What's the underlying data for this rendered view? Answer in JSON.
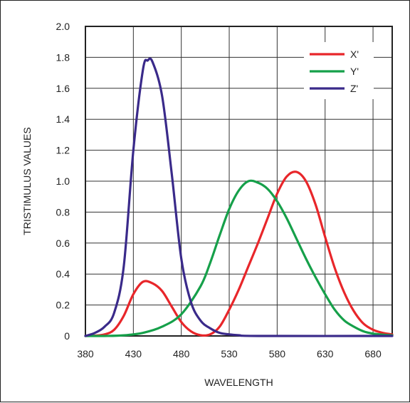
{
  "chart_data": {
    "type": "line",
    "title": "",
    "xlabel": "WAVELENGTH",
    "ylabel": "TRISTIMULUS VALUES",
    "xlim": [
      380,
      700
    ],
    "ylim": [
      0,
      2.0
    ],
    "xticks": [
      380,
      430,
      480,
      530,
      580,
      630,
      680
    ],
    "xtick_labels": [
      "380",
      "430",
      "480",
      "530",
      "580",
      "630",
      "680"
    ],
    "yticks": [
      0,
      0.2,
      0.4,
      0.6,
      0.8,
      1.0,
      1.2,
      1.4,
      1.6,
      1.8,
      2.0
    ],
    "ytick_labels": [
      "0",
      "0.2",
      "0.4",
      "0.6",
      "0.8",
      "1.0",
      "1.2",
      "1.4",
      "1.6",
      "1.8",
      "2.0"
    ],
    "grid": true,
    "legend_position": "top-right",
    "series": [
      {
        "name": "X'",
        "color": "#e8262a",
        "points": [
          [
            380,
            0
          ],
          [
            390,
            0.002
          ],
          [
            400,
            0.01
          ],
          [
            410,
            0.04
          ],
          [
            420,
            0.13
          ],
          [
            430,
            0.27
          ],
          [
            440,
            0.35
          ],
          [
            450,
            0.34
          ],
          [
            460,
            0.29
          ],
          [
            470,
            0.19
          ],
          [
            480,
            0.09
          ],
          [
            490,
            0.03
          ],
          [
            500,
            0.005
          ],
          [
            510,
            0.01
          ],
          [
            520,
            0.06
          ],
          [
            530,
            0.17
          ],
          [
            540,
            0.3
          ],
          [
            550,
            0.45
          ],
          [
            560,
            0.6
          ],
          [
            570,
            0.76
          ],
          [
            580,
            0.92
          ],
          [
            590,
            1.03
          ],
          [
            600,
            1.06
          ],
          [
            610,
            1.0
          ],
          [
            620,
            0.85
          ],
          [
            630,
            0.64
          ],
          [
            640,
            0.44
          ],
          [
            650,
            0.28
          ],
          [
            660,
            0.16
          ],
          [
            670,
            0.08
          ],
          [
            680,
            0.04
          ],
          [
            690,
            0.02
          ],
          [
            700,
            0.01
          ]
        ]
      },
      {
        "name": "Y'",
        "color": "#16a04a",
        "points": [
          [
            380,
            0
          ],
          [
            400,
            0
          ],
          [
            420,
            0.004
          ],
          [
            440,
            0.02
          ],
          [
            460,
            0.06
          ],
          [
            480,
            0.14
          ],
          [
            500,
            0.32
          ],
          [
            510,
            0.47
          ],
          [
            520,
            0.65
          ],
          [
            530,
            0.82
          ],
          [
            540,
            0.94
          ],
          [
            550,
            1.0
          ],
          [
            560,
            0.99
          ],
          [
            570,
            0.95
          ],
          [
            580,
            0.87
          ],
          [
            590,
            0.76
          ],
          [
            600,
            0.63
          ],
          [
            610,
            0.5
          ],
          [
            620,
            0.38
          ],
          [
            630,
            0.27
          ],
          [
            640,
            0.17
          ],
          [
            650,
            0.1
          ],
          [
            660,
            0.06
          ],
          [
            670,
            0.03
          ],
          [
            680,
            0.015
          ],
          [
            690,
            0.008
          ],
          [
            700,
            0.004
          ]
        ]
      },
      {
        "name": "Z'",
        "color": "#3a2a8a",
        "points": [
          [
            380,
            0
          ],
          [
            390,
            0.02
          ],
          [
            400,
            0.06
          ],
          [
            410,
            0.15
          ],
          [
            420,
            0.45
          ],
          [
            430,
            1.2
          ],
          [
            440,
            1.72
          ],
          [
            445,
            1.78
          ],
          [
            450,
            1.77
          ],
          [
            460,
            1.55
          ],
          [
            470,
            1.05
          ],
          [
            480,
            0.5
          ],
          [
            490,
            0.22
          ],
          [
            500,
            0.1
          ],
          [
            510,
            0.05
          ],
          [
            520,
            0.02
          ],
          [
            530,
            0.01
          ],
          [
            540,
            0.005
          ],
          [
            560,
            0
          ],
          [
            700,
            0
          ]
        ]
      }
    ]
  }
}
